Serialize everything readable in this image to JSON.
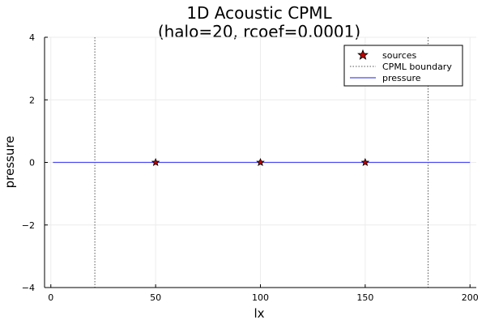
{
  "chart_data": {
    "type": "line",
    "title_line1": "1D Acoustic CPML",
    "title_line2": "(halo=20, rcoef=0.0001)",
    "xlabel": "lx",
    "ylabel": "pressure",
    "xlim": [
      -3,
      203
    ],
    "ylim": [
      -4,
      4
    ],
    "xticks": [
      0,
      50,
      100,
      150,
      200
    ],
    "yticks": [
      -4,
      -2,
      0,
      2,
      4
    ],
    "xtick_labels": [
      "0",
      "50",
      "100",
      "150",
      "200"
    ],
    "ytick_labels": [
      "−4",
      "−2",
      "0",
      "2",
      "4"
    ],
    "grid": true,
    "legend_position": "top-right",
    "series": [
      {
        "name": "sources",
        "kind": "scatter",
        "marker": "star",
        "color": "#c00000",
        "x": [
          50,
          100,
          150
        ],
        "y": [
          0,
          0,
          0
        ]
      },
      {
        "name": "CPML boundary",
        "kind": "vline",
        "style": "dotted",
        "color": "#555555",
        "x": [
          21,
          180
        ]
      },
      {
        "name": "pressure",
        "kind": "line",
        "color": "#4a4af0",
        "x": [
          1,
          200
        ],
        "y": [
          0,
          0
        ]
      }
    ]
  }
}
